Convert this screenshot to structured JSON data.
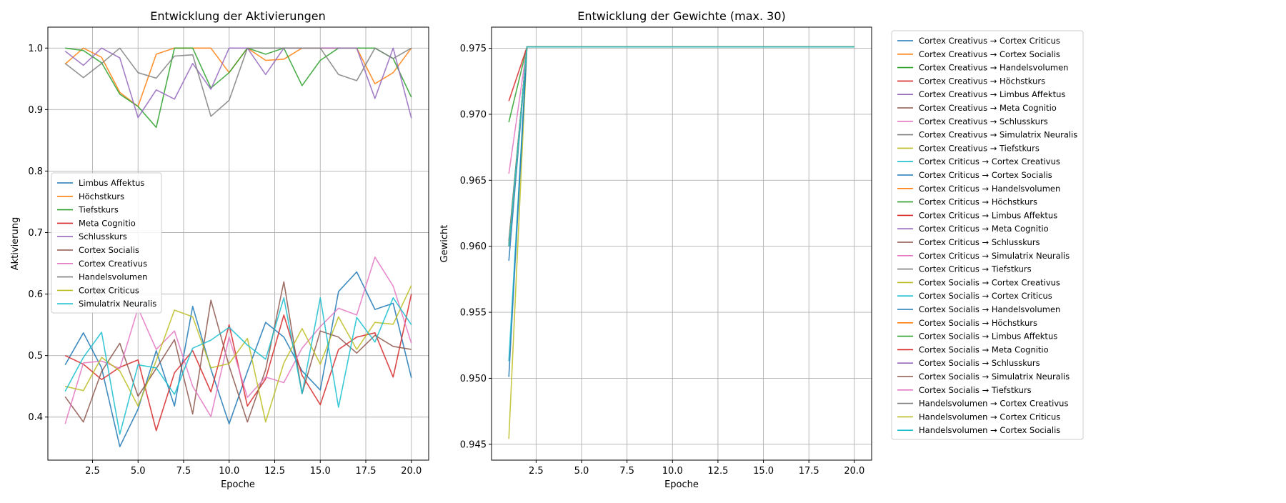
{
  "chart_data": [
    {
      "type": "line",
      "title": "Entwicklung der Aktivierungen",
      "xlabel": "Epoche",
      "ylabel": "Aktivierung",
      "xlim": [
        0.05,
        20.95
      ],
      "ylim": [
        0.33,
        1.034
      ],
      "xticks": [
        "2.5",
        "5.0",
        "7.5",
        "10.0",
        "12.5",
        "15.0",
        "17.5",
        "20.0"
      ],
      "yticks": [
        "0.4",
        "0.5",
        "0.6",
        "0.7",
        "0.8",
        "0.9",
        "1.0"
      ],
      "grid": true,
      "legend_position": "center-left",
      "x": [
        1,
        2,
        3,
        4,
        5,
        6,
        7,
        8,
        9,
        10,
        11,
        12,
        13,
        14,
        15,
        16,
        17,
        18,
        19,
        20
      ],
      "series": [
        {
          "name": "Limbus Affektus",
          "color": "#1f77b4",
          "values": [
            0.485,
            0.537,
            0.48,
            0.352,
            0.413,
            0.508,
            0.418,
            0.58,
            0.478,
            0.389,
            0.474,
            0.554,
            0.53,
            0.475,
            0.444,
            0.604,
            0.636,
            0.575,
            0.585,
            0.464
          ]
        },
        {
          "name": "Höchstkurs",
          "color": "#ff7f0e",
          "values": [
            0.974,
            1.0,
            0.985,
            0.928,
            0.905,
            0.99,
            1.0,
            1.0,
            1.0,
            0.96,
            1.0,
            0.98,
            0.982,
            1.0,
            1.0,
            1.0,
            1.0,
            0.942,
            0.96,
            1.0
          ]
        },
        {
          "name": "Tiefstkurs",
          "color": "#2ca02c",
          "values": [
            1.0,
            0.996,
            0.976,
            0.925,
            0.905,
            0.871,
            1.0,
            1.0,
            0.935,
            0.96,
            1.0,
            0.99,
            1.0,
            0.939,
            0.98,
            1.0,
            1.0,
            1.0,
            0.983,
            0.92
          ]
        },
        {
          "name": "Meta Cognitio",
          "color": "#d62728",
          "values": [
            0.5,
            0.486,
            0.461,
            0.481,
            0.493,
            0.378,
            0.472,
            0.508,
            0.441,
            0.55,
            0.418,
            0.462,
            0.566,
            0.468,
            0.42,
            0.51,
            0.53,
            0.537,
            0.465,
            0.6
          ]
        },
        {
          "name": "Schlusskurs",
          "color": "#9467bd",
          "values": [
            0.995,
            0.972,
            1.0,
            0.984,
            0.887,
            0.932,
            0.917,
            0.975,
            0.933,
            1.0,
            1.0,
            0.957,
            1.0,
            1.0,
            1.0,
            1.0,
            1.0,
            0.918,
            1.0,
            0.886
          ]
        },
        {
          "name": "Cortex Socialis",
          "color": "#8c564b",
          "values": [
            0.433,
            0.392,
            0.474,
            0.52,
            0.434,
            0.479,
            0.526,
            0.405,
            0.59,
            0.483,
            0.392,
            0.477,
            0.62,
            0.438,
            0.54,
            0.53,
            0.504,
            0.533,
            0.515,
            0.51
          ]
        },
        {
          "name": "Cortex Creativus",
          "color": "#e377c2",
          "values": [
            0.389,
            0.488,
            0.491,
            0.479,
            0.577,
            0.51,
            0.54,
            0.45,
            0.401,
            0.53,
            0.432,
            0.465,
            0.456,
            0.512,
            0.547,
            0.577,
            0.566,
            0.66,
            0.613,
            0.52
          ]
        },
        {
          "name": "Handelsvolumen",
          "color": "#7f7f7f",
          "values": [
            0.975,
            0.952,
            0.975,
            1.0,
            0.96,
            0.951,
            0.987,
            0.989,
            0.889,
            0.915,
            1.0,
            1.0,
            1.0,
            1.0,
            1.0,
            0.957,
            0.947,
            1.0,
            0.983,
            1.0
          ]
        },
        {
          "name": "Cortex Criticus",
          "color": "#bcbd22",
          "values": [
            0.45,
            0.443,
            0.497,
            0.475,
            0.418,
            0.492,
            0.574,
            0.563,
            0.48,
            0.487,
            0.528,
            0.392,
            0.488,
            0.544,
            0.486,
            0.563,
            0.51,
            0.554,
            0.551,
            0.614
          ]
        },
        {
          "name": "Simulatrix Neuralis",
          "color": "#17becf",
          "values": [
            0.442,
            0.497,
            0.538,
            0.372,
            0.485,
            0.48,
            0.437,
            0.512,
            0.525,
            0.546,
            0.517,
            0.494,
            0.594,
            0.438,
            0.594,
            0.416,
            0.562,
            0.522,
            0.594,
            0.55
          ]
        }
      ]
    },
    {
      "type": "line",
      "title": "Entwicklung der Gewichte (max. 30)",
      "xlabel": "Epoche",
      "ylabel": "Gewicht",
      "xlim": [
        0.05,
        20.95
      ],
      "ylim": [
        0.9438,
        0.9766
      ],
      "xticks": [
        "2.5",
        "5.0",
        "7.5",
        "10.0",
        "12.5",
        "15.0",
        "17.5",
        "20.0"
      ],
      "yticks": [
        "0.945",
        "0.950",
        "0.955",
        "0.960",
        "0.965",
        "0.970",
        "0.975"
      ],
      "grid": true,
      "legend_position": "outside-right",
      "x": [
        1,
        2,
        20
      ],
      "final_value": 0.9751,
      "series": [
        {
          "name": "Cortex Creativus → Cortex Criticus",
          "color": "#1f77b4",
          "start": 0.9601
        },
        {
          "name": "Cortex Creativus → Cortex Socialis",
          "color": "#ff7f0e",
          "start": 0.96
        },
        {
          "name": "Cortex Creativus → Handelsvolumen",
          "color": "#2ca02c",
          "start": 0.96
        },
        {
          "name": "Cortex Creativus → Höchstkurs",
          "color": "#d62728",
          "start": 0.96
        },
        {
          "name": "Cortex Creativus → Limbus Affektus",
          "color": "#9467bd",
          "start": 0.96
        },
        {
          "name": "Cortex Creativus → Meta Cognitio",
          "color": "#8c564b",
          "start": 0.96
        },
        {
          "name": "Cortex Creativus → Schlusskurs",
          "color": "#e377c2",
          "start": 0.96
        },
        {
          "name": "Cortex Creativus → Simulatrix Neuralis",
          "color": "#7f7f7f",
          "start": 0.96
        },
        {
          "name": "Cortex Creativus → Tiefstkurs",
          "color": "#bcbd22",
          "start": 0.96
        },
        {
          "name": "Cortex Criticus → Cortex Creativus",
          "color": "#17becf",
          "start": 0.96
        },
        {
          "name": "Cortex Criticus → Cortex Socialis",
          "color": "#1f77b4",
          "start": 0.9589
        },
        {
          "name": "Cortex Criticus → Handelsvolumen",
          "color": "#ff7f0e",
          "start": 0.96
        },
        {
          "name": "Cortex Criticus → Höchstkurs",
          "color": "#2ca02c",
          "start": 0.9694
        },
        {
          "name": "Cortex Criticus → Limbus Affektus",
          "color": "#d62728",
          "start": 0.971
        },
        {
          "name": "Cortex Criticus → Meta Cognitio",
          "color": "#9467bd",
          "start": 0.96
        },
        {
          "name": "Cortex Criticus → Schlusskurs",
          "color": "#8c564b",
          "start": 0.9604
        },
        {
          "name": "Cortex Criticus → Simulatrix Neuralis",
          "color": "#e377c2",
          "start": 0.9655
        },
        {
          "name": "Cortex Criticus → Tiefstkurs",
          "color": "#7f7f7f",
          "start": 0.96
        },
        {
          "name": "Cortex Socialis → Cortex Creativus",
          "color": "#bcbd22",
          "start": 0.9454
        },
        {
          "name": "Cortex Socialis → Cortex Criticus",
          "color": "#17becf",
          "start": 0.9513
        },
        {
          "name": "Cortex Socialis → Handelsvolumen",
          "color": "#1f77b4",
          "start": 0.9501
        },
        {
          "name": "Cortex Socialis → Höchstkurs",
          "color": "#ff7f0e",
          "start": 0.96
        },
        {
          "name": "Cortex Socialis → Limbus Affektus",
          "color": "#2ca02c",
          "start": 0.96
        },
        {
          "name": "Cortex Socialis → Meta Cognitio",
          "color": "#d62728",
          "start": 0.96
        },
        {
          "name": "Cortex Socialis → Schlusskurs",
          "color": "#9467bd",
          "start": 0.96
        },
        {
          "name": "Cortex Socialis → Simulatrix Neuralis",
          "color": "#8c564b",
          "start": 0.96
        },
        {
          "name": "Cortex Socialis → Tiefstkurs",
          "color": "#e377c2",
          "start": 0.96
        },
        {
          "name": "Handelsvolumen → Cortex Creativus",
          "color": "#7f7f7f",
          "start": 0.96
        },
        {
          "name": "Handelsvolumen → Cortex Criticus",
          "color": "#bcbd22",
          "start": 0.96
        },
        {
          "name": "Handelsvolumen → Cortex Socialis",
          "color": "#17becf",
          "start": 0.96
        }
      ]
    }
  ]
}
